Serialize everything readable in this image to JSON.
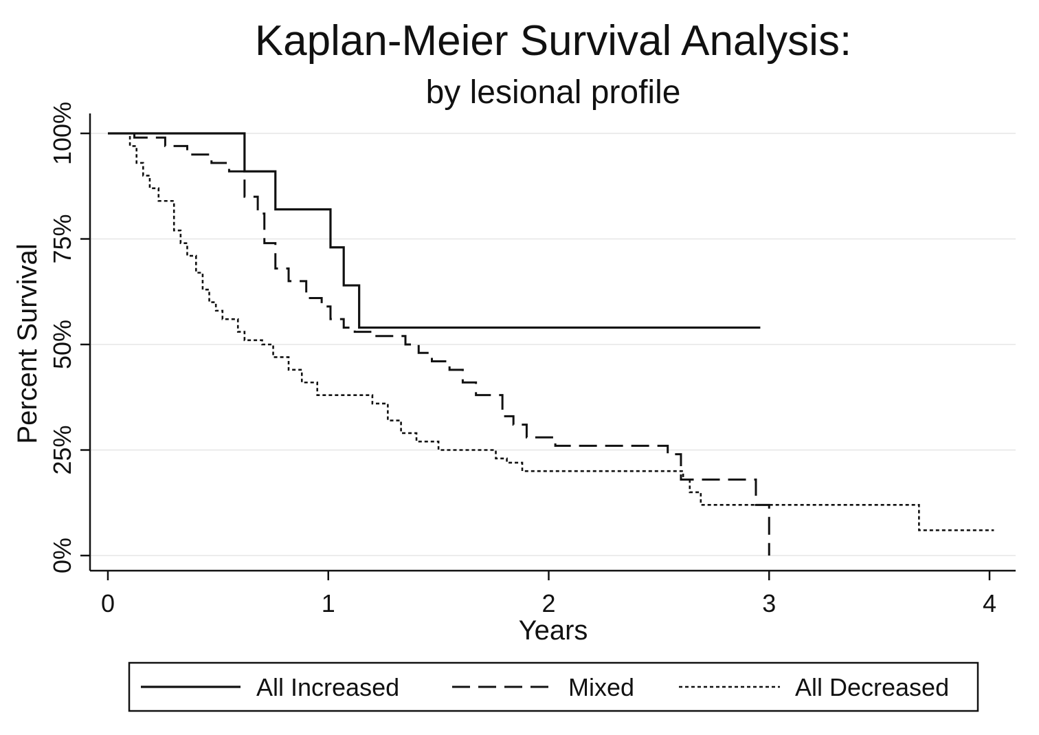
{
  "chart_data": {
    "type": "line",
    "title": "Kaplan-Meier Survival Analysis:",
    "subtitle": "by lesional profile",
    "xlabel": "Years",
    "ylabel": "Percent Survival",
    "xlim": [
      0,
      4.05
    ],
    "ylim": [
      0,
      100
    ],
    "x_ticks": [
      0,
      1,
      2,
      3,
      4
    ],
    "x_tick_labels": [
      "0",
      "1",
      "2",
      "3",
      "4"
    ],
    "y_ticks": [
      0,
      25,
      50,
      75,
      100
    ],
    "y_tick_labels": [
      "0%",
      "25%",
      "50%",
      "75%",
      "100%"
    ],
    "grid": true,
    "legend_position": "bottom",
    "step": true,
    "series": [
      {
        "name": "All Increased",
        "style": "solid",
        "x": [
          0,
          0.62,
          0.76,
          1.01,
          1.07,
          1.14,
          2.96
        ],
        "y": [
          100,
          91,
          82,
          73,
          64,
          54,
          54
        ]
      },
      {
        "name": "Mixed",
        "style": "dashed",
        "x": [
          0,
          0.12,
          0.26,
          0.36,
          0.47,
          0.55,
          0.62,
          0.68,
          0.71,
          0.76,
          0.82,
          0.9,
          0.97,
          1.01,
          1.07,
          1.12,
          1.2,
          1.35,
          1.41,
          1.47,
          1.55,
          1.61,
          1.67,
          1.79,
          1.84,
          1.9,
          2.03,
          2.54,
          2.6,
          2.94,
          3.0
        ],
        "y": [
          100,
          99,
          97,
          95,
          93,
          91,
          85,
          81,
          74,
          68,
          65,
          61,
          59,
          56,
          54,
          53,
          52,
          50,
          48,
          46,
          44,
          41,
          38,
          33,
          31,
          28,
          26,
          24,
          18,
          12,
          0
        ]
      },
      {
        "name": "All Decreased",
        "style": "dotted",
        "x": [
          0,
          0.1,
          0.13,
          0.16,
          0.19,
          0.23,
          0.3,
          0.33,
          0.36,
          0.4,
          0.43,
          0.46,
          0.49,
          0.52,
          0.59,
          0.62,
          0.7,
          0.75,
          0.82,
          0.88,
          0.95,
          1.0,
          1.2,
          1.27,
          1.33,
          1.4,
          1.5,
          1.6,
          1.76,
          1.81,
          1.88,
          2.61,
          2.64,
          2.69,
          3.68,
          4.02
        ],
        "y": [
          100,
          97,
          93,
          90,
          87,
          84,
          77,
          74,
          71,
          67,
          63,
          60,
          58,
          56,
          53,
          51,
          50,
          47,
          44,
          41,
          38,
          38,
          36,
          32,
          29,
          27,
          25,
          25,
          23,
          22,
          20,
          18,
          15,
          12,
          6,
          6
        ]
      }
    ]
  }
}
